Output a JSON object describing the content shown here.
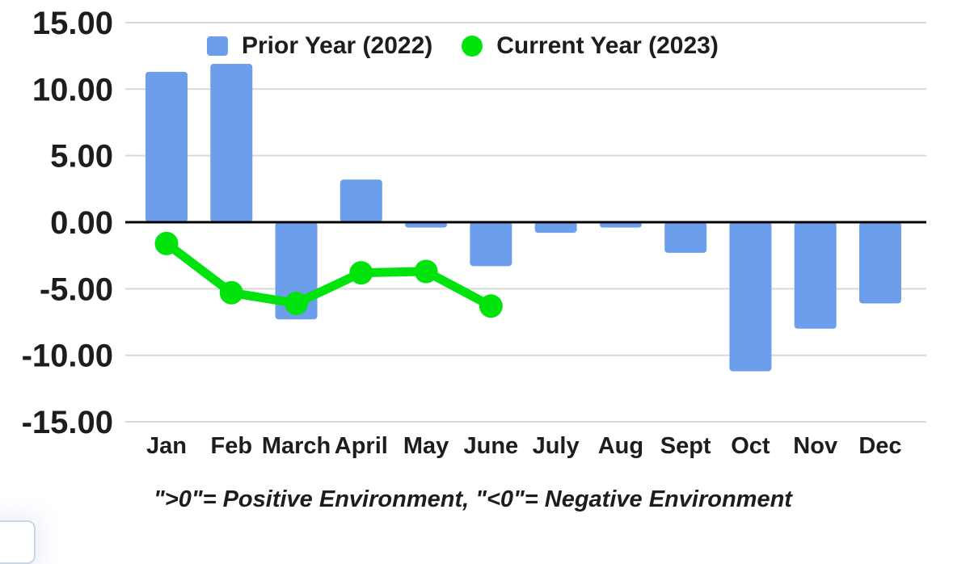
{
  "legend": {
    "prior": {
      "label": "Prior Year (2022)",
      "color": "#6d9eeb"
    },
    "current": {
      "label": "Current Year (2023)",
      "color": "#00e30c"
    }
  },
  "footnote": "\">0\"= Positive Environment, \"<0\"= Negative Environment",
  "chart_data": {
    "type": "combo",
    "categories": [
      "Jan",
      "Feb",
      "March",
      "April",
      "May",
      "June",
      "July",
      "Aug",
      "Sept",
      "Oct",
      "Nov",
      "Dec"
    ],
    "series": [
      {
        "name": "Prior Year (2022)",
        "type": "bar",
        "color": "#6d9eeb",
        "values": [
          11.3,
          11.9,
          -7.3,
          3.2,
          -0.4,
          -3.3,
          -0.8,
          -0.4,
          -2.3,
          -11.2,
          -8.0,
          -6.1
        ]
      },
      {
        "name": "Current Year (2023)",
        "type": "line",
        "color": "#00e30c",
        "values": [
          -1.6,
          -5.3,
          -6.1,
          -3.8,
          -3.7,
          -6.3
        ]
      }
    ],
    "title": "",
    "xlabel": "",
    "ylabel": "",
    "ylim": [
      -15,
      15
    ],
    "ytick_step": 5,
    "yticks": [
      15,
      10,
      5,
      0,
      -5,
      -10,
      -15
    ],
    "ytick_labels": [
      "15.00",
      "10.00",
      "5.00",
      "0.00",
      "-5.00",
      "-10.00",
      "-15.00"
    ],
    "grid": true,
    "gridline_color": "#d9d9d9",
    "axis_line_color": "#000000",
    "legend_position": "top"
  }
}
